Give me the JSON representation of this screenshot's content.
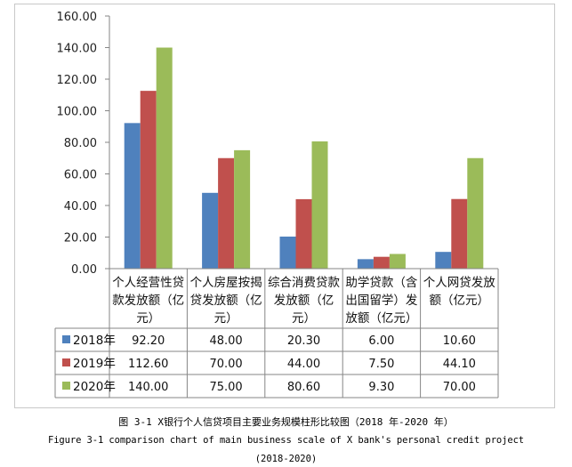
{
  "chart_data": {
    "type": "bar",
    "categories": [
      "个人经营性贷款发放额（亿元）",
      "个人房屋按揭贷发放额（亿元）",
      "综合消费贷款发放额（亿元）",
      "助学贷款（含出国留学）发放额（亿元）",
      "个人网贷发放额（亿元）"
    ],
    "category_lines": [
      [
        "个人经营性贷",
        "款发放额（亿",
        "元）"
      ],
      [
        "个人房屋按揭",
        "贷发放额（亿",
        "元）"
      ],
      [
        "综合消费贷款",
        "发放额（亿",
        "元）"
      ],
      [
        "助学贷款（含",
        "出国留学）发",
        "放额（亿元）"
      ],
      [
        "个人网贷发放",
        "额（亿元）"
      ]
    ],
    "series": [
      {
        "name": "2018年",
        "values": [
          92.2,
          48.0,
          20.3,
          6.0,
          10.6
        ],
        "color": "#4F81BD",
        "labels": [
          "92.20",
          "48.00",
          "20.30",
          "6.00",
          "10.60"
        ]
      },
      {
        "name": "2019年",
        "values": [
          112.6,
          70.0,
          44.0,
          7.5,
          44.1
        ],
        "color": "#C0504D",
        "labels": [
          "112.60",
          "70.00",
          "44.00",
          "7.50",
          "44.10"
        ]
      },
      {
        "name": "2020年",
        "values": [
          140.0,
          75.0,
          80.6,
          9.3,
          70.0
        ],
        "color": "#9BBB59",
        "labels": [
          "140.00",
          "75.00",
          "80.60",
          "9.30",
          "70.00"
        ]
      }
    ],
    "ylim": [
      0,
      160
    ],
    "yticks": [
      "0.00",
      "20.00",
      "40.00",
      "60.00",
      "80.00",
      "100.00",
      "120.00",
      "140.00",
      "160.00"
    ],
    "grid": false,
    "legend": "data-table"
  },
  "captions": {
    "cn": "图 3-1 X银行个人信贷项目主要业务规模柱形比较图（2018 年-2020 年）",
    "en": "Figure 3-1 comparison chart of main business scale of X bank's personal credit project",
    "en2": "(2018-2020)"
  }
}
